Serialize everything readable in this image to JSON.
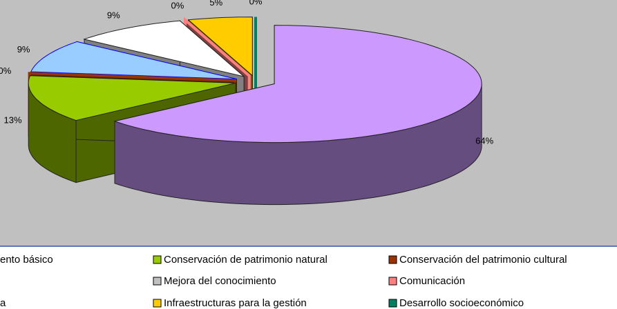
{
  "chart_data": {
    "type": "pie3d",
    "values": [
      64,
      13,
      0,
      9,
      9,
      0,
      5,
      0
    ],
    "value_labels": [
      "64%",
      "13%",
      "0%",
      "9%",
      "9%",
      "0%",
      "5%",
      "0%"
    ],
    "colors": [
      "#cc99ff",
      "#99cc00",
      "#993300",
      "#99ccff",
      "#ffffff",
      "#ff8080",
      "#ffcc00",
      "#008060"
    ],
    "legend": [
      {
        "name": "ento básico"
      },
      {
        "name": "Conservación de patrimonio natural",
        "color": "#99cc00"
      },
      {
        "name": "Conservación del patrimonio cultural",
        "color": "#993300"
      },
      {
        "name": "Mejora del conocimiento",
        "color": "#c0c0c0"
      },
      {
        "name": "Comunicación",
        "color": "#ff8080"
      },
      {
        "name": "a"
      },
      {
        "name": "Infraestructuras para la gestión",
        "color": "#ffcc00"
      },
      {
        "name": "Desarrollo socioeconómico",
        "color": "#008060"
      }
    ]
  }
}
